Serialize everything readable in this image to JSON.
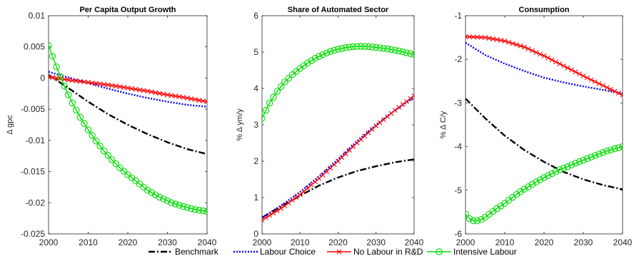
{
  "chart_data": [
    {
      "type": "line",
      "title": "Per Capita Output Growth",
      "xlabel": "",
      "ylabel": "Δ gpc",
      "xlim": [
        2000,
        2040
      ],
      "ylim": [
        -0.025,
        0.01
      ],
      "xticks": [
        2000,
        2010,
        2020,
        2030,
        2040
      ],
      "xtick_labels": [
        "2000",
        "2010",
        "2020",
        "2030",
        "2040"
      ],
      "yticks": [
        -0.025,
        -0.02,
        -0.015,
        -0.01,
        -0.005,
        0,
        0.005,
        0.01
      ],
      "ytick_labels": [
        "-0.025",
        "-0.02",
        "-0.015",
        "-0.01",
        "-0.005",
        "0",
        "0.005",
        "0.01"
      ],
      "series": [
        {
          "name": "Benchmark",
          "x": [
            2000,
            2005,
            2010,
            2015,
            2020,
            2025,
            2030,
            2035,
            2040
          ],
          "y": [
            0.0005,
            -0.0016,
            -0.0038,
            -0.0058,
            -0.0075,
            -0.009,
            -0.0103,
            -0.0114,
            -0.0122
          ]
        },
        {
          "name": "Labour Choice",
          "x": [
            2000,
            2005,
            2010,
            2015,
            2020,
            2025,
            2030,
            2035,
            2040
          ],
          "y": [
            0.001,
            0.0001,
            -0.0008,
            -0.0017,
            -0.0025,
            -0.0032,
            -0.0038,
            -0.0043,
            -0.0046
          ]
        },
        {
          "name": "No Labour in R&D",
          "x": [
            2000,
            2005,
            2010,
            2015,
            2020,
            2025,
            2030,
            2035,
            2040
          ],
          "y": [
            0.0002,
            -0.0003,
            -0.0007,
            -0.0011,
            -0.0016,
            -0.0021,
            -0.0027,
            -0.0032,
            -0.0038
          ]
        },
        {
          "name": "Intensive Labour",
          "x": [
            2000,
            2001,
            2002,
            2003,
            2004,
            2005,
            2006,
            2008,
            2010,
            2012,
            2014,
            2016,
            2018,
            2020,
            2022,
            2025,
            2028,
            2031,
            2034,
            2037,
            2040
          ],
          "y": [
            0.0052,
            0.0035,
            0.0018,
            0.0002,
            -0.0013,
            -0.0027,
            -0.004,
            -0.0063,
            -0.0083,
            -0.0101,
            -0.0117,
            -0.0131,
            -0.0144,
            -0.0155,
            -0.0165,
            -0.018,
            -0.0191,
            -0.02,
            -0.0206,
            -0.0211,
            -0.0214
          ]
        }
      ]
    },
    {
      "type": "line",
      "title": "Share of Automated Sector",
      "xlabel": "",
      "ylabel": "% Δ ym/y",
      "xlim": [
        2000,
        2040
      ],
      "ylim": [
        0,
        6
      ],
      "xticks": [
        2000,
        2010,
        2020,
        2030,
        2040
      ],
      "xtick_labels": [
        "2000",
        "2010",
        "2020",
        "2030",
        "2040"
      ],
      "yticks": [
        0,
        1,
        2,
        3,
        4,
        5,
        6
      ],
      "ytick_labels": [
        "0",
        "1",
        "2",
        "3",
        "4",
        "5",
        "6"
      ],
      "series": [
        {
          "name": "Benchmark",
          "x": [
            2000,
            2005,
            2010,
            2015,
            2020,
            2025,
            2030,
            2035,
            2040
          ],
          "y": [
            0.45,
            0.75,
            1.05,
            1.33,
            1.55,
            1.73,
            1.86,
            1.97,
            2.05
          ]
        },
        {
          "name": "Labour Choice",
          "x": [
            2000,
            2005,
            2010,
            2015,
            2020,
            2025,
            2030,
            2035,
            2040
          ],
          "y": [
            0.45,
            0.78,
            1.15,
            1.58,
            2.05,
            2.55,
            3.0,
            3.4,
            3.75
          ]
        },
        {
          "name": "No Labour in R&D",
          "x": [
            2000,
            2005,
            2010,
            2015,
            2020,
            2025,
            2030,
            2035,
            2040
          ],
          "y": [
            0.38,
            0.7,
            1.08,
            1.52,
            2.0,
            2.5,
            2.97,
            3.4,
            3.8
          ]
        },
        {
          "name": "Intensive Labour",
          "x": [
            2000,
            2001,
            2002,
            2003,
            2004,
            2005,
            2006,
            2008,
            2010,
            2012,
            2014,
            2016,
            2018,
            2020,
            2022,
            2024,
            2026,
            2028,
            2030,
            2032,
            2034,
            2036,
            2038,
            2040
          ],
          "y": [
            3.18,
            3.4,
            3.6,
            3.76,
            3.92,
            4.05,
            4.18,
            4.38,
            4.55,
            4.7,
            4.83,
            4.93,
            5.02,
            5.08,
            5.12,
            5.15,
            5.16,
            5.15,
            5.13,
            5.1,
            5.07,
            5.03,
            4.98,
            4.93
          ]
        }
      ]
    },
    {
      "type": "line",
      "title": "Consumption",
      "xlabel": "",
      "ylabel": "% Δ C/y",
      "xlim": [
        2000,
        2040
      ],
      "ylim": [
        -6,
        -1
      ],
      "xticks": [
        2000,
        2010,
        2020,
        2030,
        2040
      ],
      "xtick_labels": [
        "2000",
        "2010",
        "2020",
        "2030",
        "2040"
      ],
      "yticks": [
        -6,
        -5,
        -4,
        -3,
        -2,
        -1
      ],
      "ytick_labels": [
        "-6",
        "-5",
        "-4",
        "-3",
        "-2",
        "-1"
      ],
      "series": [
        {
          "name": "Benchmark",
          "x": [
            2000,
            2005,
            2010,
            2015,
            2020,
            2025,
            2030,
            2035,
            2040
          ],
          "y": [
            -2.9,
            -3.35,
            -3.75,
            -4.08,
            -4.35,
            -4.58,
            -4.75,
            -4.88,
            -4.98
          ]
        },
        {
          "name": "Labour Choice",
          "x": [
            2000,
            2005,
            2010,
            2015,
            2020,
            2025,
            2030,
            2035,
            2040
          ],
          "y": [
            -1.62,
            -1.9,
            -2.1,
            -2.27,
            -2.42,
            -2.53,
            -2.62,
            -2.7,
            -2.78
          ]
        },
        {
          "name": "No Labour in R&D",
          "x": [
            2000,
            2005,
            2010,
            2015,
            2020,
            2025,
            2030,
            2035,
            2040
          ],
          "y": [
            -1.48,
            -1.5,
            -1.58,
            -1.72,
            -1.92,
            -2.15,
            -2.38,
            -2.6,
            -2.82
          ]
        },
        {
          "name": "Intensive Labour",
          "x": [
            2000,
            2001,
            2002,
            2003,
            2004,
            2005,
            2006,
            2008,
            2010,
            2012,
            2014,
            2016,
            2018,
            2020,
            2022,
            2024,
            2026,
            2028,
            2030,
            2032,
            2034,
            2036,
            2038,
            2040
          ],
          "y": [
            -5.55,
            -5.65,
            -5.7,
            -5.7,
            -5.67,
            -5.62,
            -5.55,
            -5.42,
            -5.3,
            -5.16,
            -5.03,
            -4.92,
            -4.81,
            -4.71,
            -4.62,
            -4.53,
            -4.46,
            -4.38,
            -4.31,
            -4.24,
            -4.17,
            -4.1,
            -4.05,
            -4.0
          ]
        }
      ]
    }
  ],
  "legend": {
    "placement": "bottom",
    "items": [
      {
        "label": "Benchmark",
        "color": "#000000",
        "style": "dash-dot",
        "marker": "none"
      },
      {
        "label": "Labour Choice",
        "color": "#0000ff",
        "style": "dotted",
        "marker": "none"
      },
      {
        "label": "No Labour in R&D",
        "color": "#ff0000",
        "style": "solid",
        "marker": "x"
      },
      {
        "label": "Intensive Labour",
        "color": "#00dd00",
        "style": "solid",
        "marker": "circle"
      }
    ]
  },
  "grid": false
}
